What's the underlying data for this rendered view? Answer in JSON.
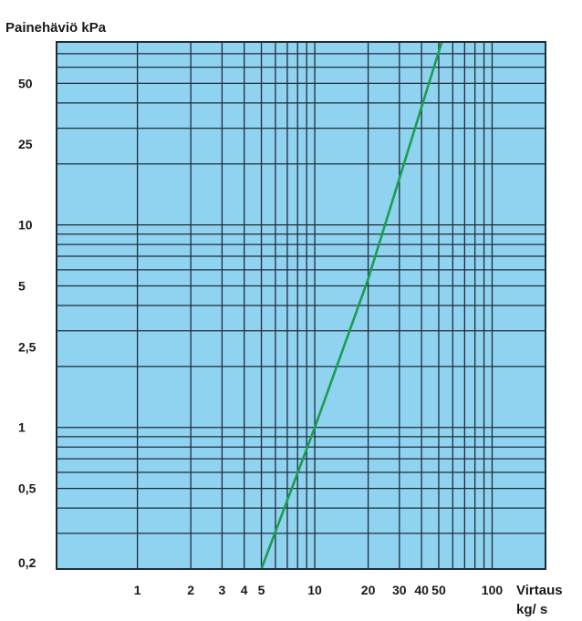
{
  "chart_data": {
    "type": "line",
    "ylabel": "Painehäviö kPa",
    "xlabel": "Virtaus kg/ s",
    "xlabel_lines": [
      "Virtaus",
      "kg/ s"
    ],
    "x_scale": "log",
    "y_scale": "log",
    "x_ticks": [
      {
        "value": 1,
        "label": "1"
      },
      {
        "value": 2,
        "label": "2"
      },
      {
        "value": 3,
        "label": "3"
      },
      {
        "value": 4,
        "label": "4"
      },
      {
        "value": 5,
        "label": "5"
      },
      {
        "value": 10,
        "label": "10"
      },
      {
        "value": 20,
        "label": "20"
      },
      {
        "value": 30,
        "label": "30"
      },
      {
        "value": 40,
        "label": "40"
      },
      {
        "value": 50,
        "label": "50"
      },
      {
        "value": 100,
        "label": "100"
      }
    ],
    "y_ticks": [
      {
        "value": 0.2,
        "label": "0,2"
      },
      {
        "value": 0.5,
        "label": "0,5"
      },
      {
        "value": 1,
        "label": "1"
      },
      {
        "value": 2.5,
        "label": "2,5"
      },
      {
        "value": 5,
        "label": "5"
      },
      {
        "value": 10,
        "label": "10"
      },
      {
        "value": 25,
        "label": "25"
      },
      {
        "value": 50,
        "label": "50"
      }
    ],
    "xlim": [
      0.35,
      200
    ],
    "ylim": [
      0.2,
      80
    ],
    "grid": true,
    "series": [
      {
        "x": [
          5,
          10,
          20,
          52
        ],
        "y": [
          0.2,
          1,
          5.4,
          80
        ]
      }
    ],
    "colors": {
      "plot_background": "#8fd3f0",
      "grid": "#1f2c3a",
      "line": "#1a9e50",
      "text": "#1a1a1a"
    }
  }
}
